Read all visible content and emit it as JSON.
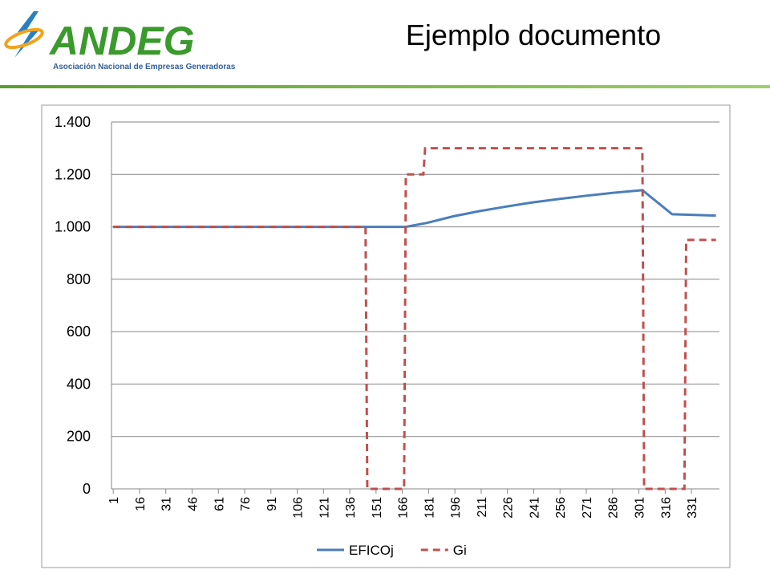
{
  "header": {
    "logo": "ANDEG",
    "logo_subtitle": "Asociación Nacional de Empresas Generadoras",
    "title": "Ejemplo documento"
  },
  "chart_data": {
    "type": "line",
    "xlim": [
      0,
      347
    ],
    "xticks": [
      1,
      16,
      31,
      46,
      61,
      76,
      91,
      106,
      121,
      136,
      151,
      166,
      181,
      196,
      211,
      226,
      241,
      256,
      271,
      286,
      301,
      316,
      331
    ],
    "ylim": [
      0,
      1400
    ],
    "yticks": [
      0,
      200,
      400,
      600,
      800,
      {
        "value": 1000,
        "label": "1.000"
      },
      {
        "value": 1200,
        "label": "1.200"
      },
      {
        "value": 1400,
        "label": "1.400"
      }
    ],
    "grid": true,
    "legend": "bottom",
    "series": [
      {
        "name": "EFICOj",
        "color": "#4a7ebb",
        "style": "solid",
        "x": [
          1,
          168,
          180,
          195,
          210,
          225,
          240,
          255,
          270,
          285,
          303,
          320,
          345
        ],
        "values": [
          1000,
          1000,
          1015,
          1040,
          1060,
          1077,
          1093,
          1106,
          1118,
          1129,
          1140,
          1048,
          1043
        ]
      },
      {
        "name": "Gi",
        "color": "#c0504d",
        "style": "dashed",
        "x": [
          1,
          145,
          146,
          167,
          168,
          178,
          179,
          303,
          304,
          327,
          328,
          345
        ],
        "values": [
          1000,
          1000,
          0,
          0,
          1200,
          1200,
          1300,
          1300,
          0,
          0,
          950,
          950
        ]
      }
    ]
  }
}
